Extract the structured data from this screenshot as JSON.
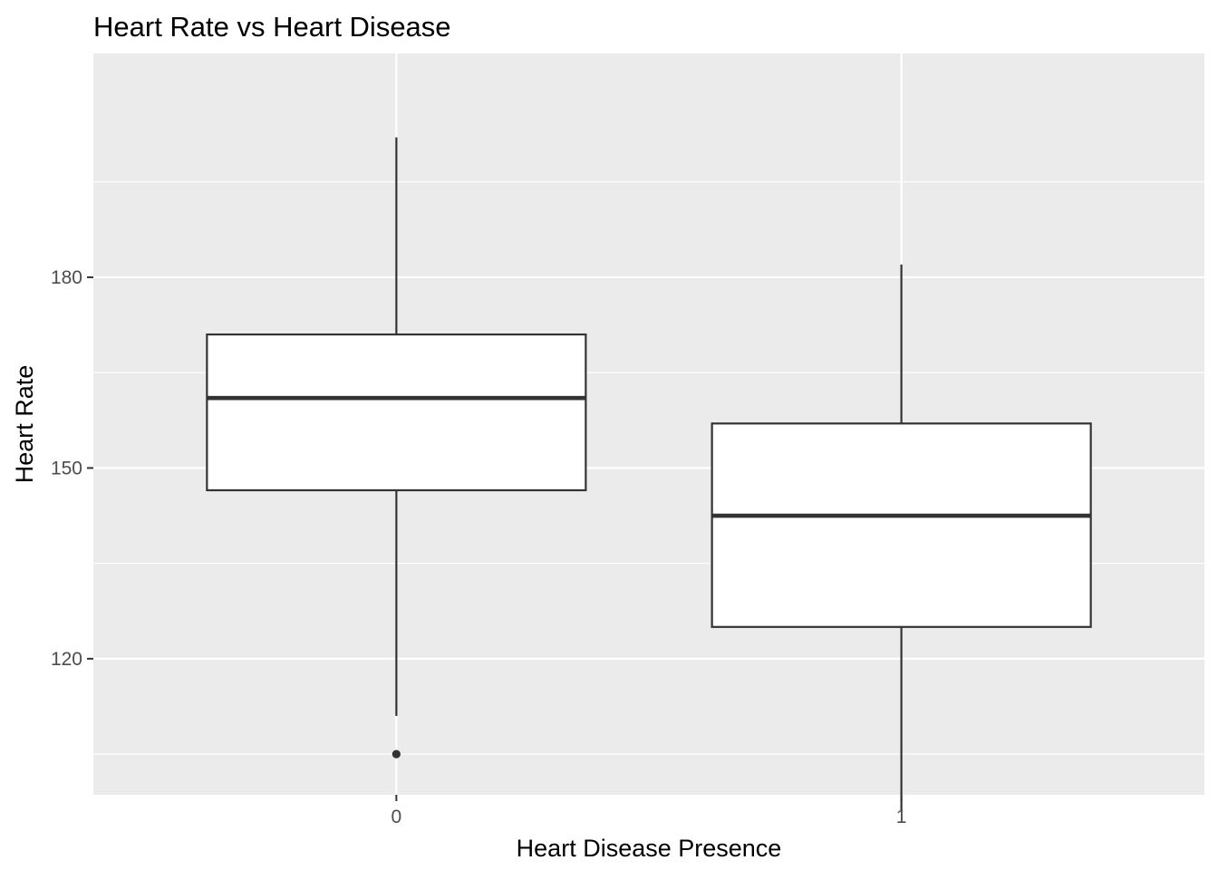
{
  "chart_data": {
    "type": "boxplot",
    "title": "Heart Rate vs Heart Disease",
    "xlabel": "Heart Disease Presence",
    "ylabel": "Heart Rate",
    "categories": [
      "0",
      "1"
    ],
    "ylim": [
      98.6,
      215.2
    ],
    "yticks": [
      120,
      150,
      180
    ],
    "grid": true,
    "legend": "none",
    "boxes": [
      {
        "category": "0",
        "whisker_low": 111,
        "q1": 146.5,
        "median": 161,
        "q3": 171,
        "whisker_high": 202,
        "outliers": [
          105
        ]
      },
      {
        "category": "1",
        "whisker_low": 96,
        "q1": 125,
        "median": 142.5,
        "q3": 157,
        "whisker_high": 182
      }
    ],
    "colors": {
      "panel_bg": "#ebebeb",
      "grid": "#ffffff",
      "box_fill": "#ffffff",
      "box_line": "#333333",
      "tick_text": "#4d4d4d"
    }
  }
}
